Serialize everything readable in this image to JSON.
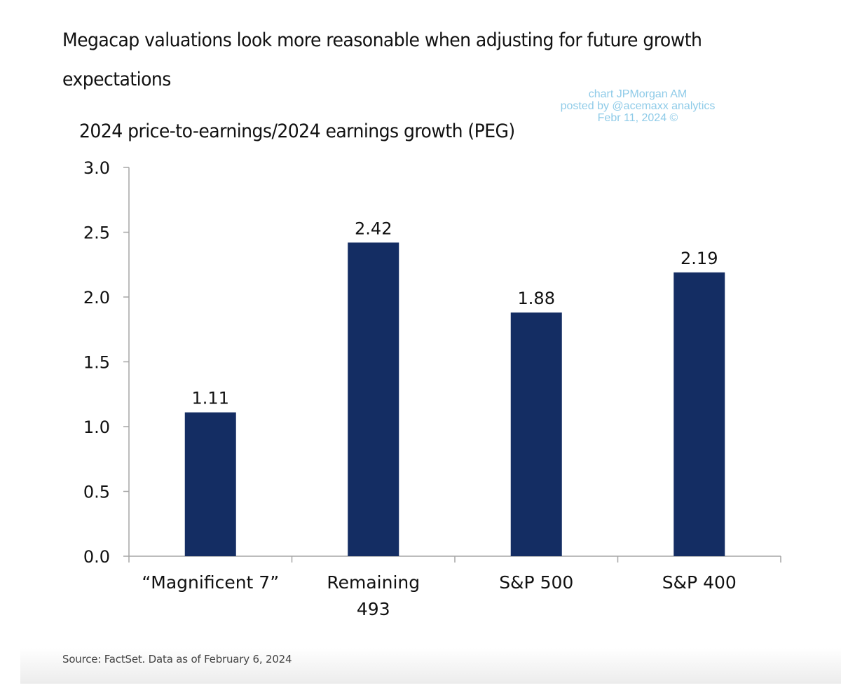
{
  "headline": "Megacap valuations look more reasonable when adjusting for future growth expectations",
  "watermark": {
    "line1": "chart JPMorgan AM",
    "line2": "posted by @acemaxx analytics",
    "line3": "Febr 11, 2024 ©"
  },
  "source": "Source: FactSet. Data as of February 6, 2024",
  "colors": {
    "bar": "#142d63",
    "axis": "#a6a6a6",
    "watermark": "#8fcbe8"
  },
  "chart_data": {
    "type": "bar",
    "title": "2024 price-to-earnings/2024 earnings growth (PEG)",
    "xlabel": "",
    "ylabel": "",
    "categories": [
      [
        "“Magnificent 7”"
      ],
      [
        "Remaining",
        "493"
      ],
      [
        "S&P 500"
      ],
      [
        "S&P 400"
      ]
    ],
    "values": [
      1.11,
      2.42,
      1.88,
      2.19
    ],
    "data_labels": [
      "1.11",
      "2.42",
      "1.88",
      "2.19"
    ],
    "ylim": [
      0,
      3.0
    ],
    "yticks": [
      0.0,
      0.5,
      1.0,
      1.5,
      2.0,
      2.5,
      3.0
    ],
    "ytick_labels": [
      "0.0",
      "0.5",
      "1.0",
      "1.5",
      "2.0",
      "2.5",
      "3.0"
    ],
    "grid": false,
    "legend": "none"
  }
}
